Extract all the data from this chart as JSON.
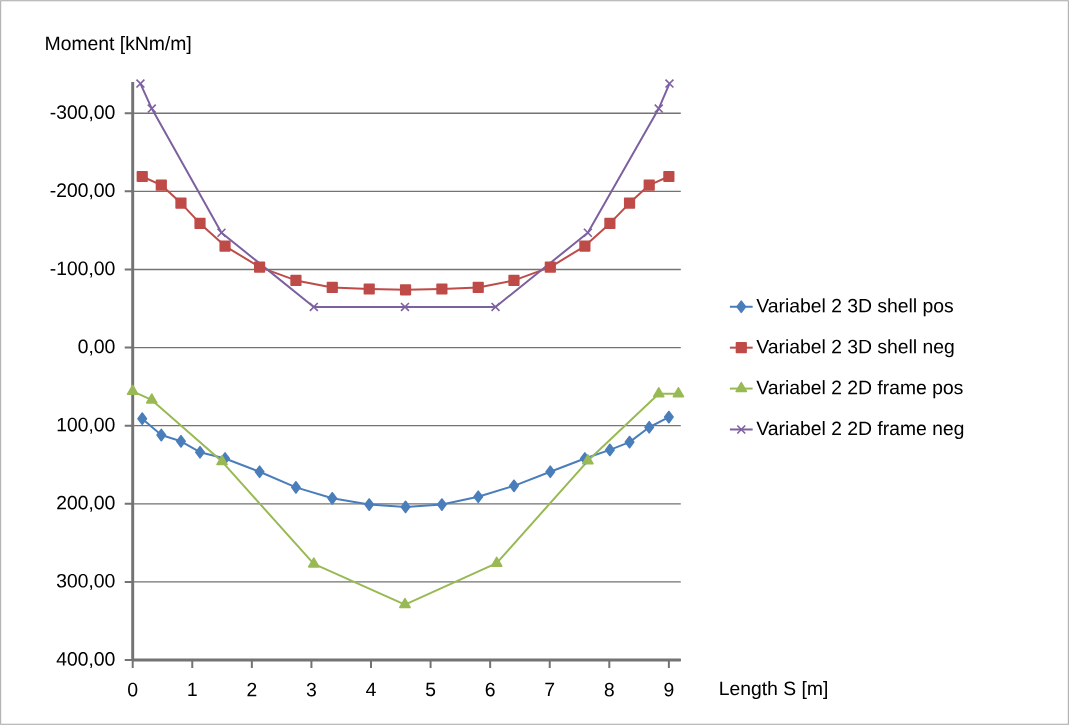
{
  "chart_data": {
    "type": "line",
    "xlabel": "Length S [m]",
    "ylabel": "Moment [kNm/m]",
    "xlim": [
      0,
      9.2
    ],
    "xticks": [
      0,
      1,
      2,
      3,
      4,
      5,
      6,
      7,
      8,
      9
    ],
    "ylim": [
      400,
      -340
    ],
    "yticks": [
      {
        "value": -300,
        "label": "-300,00"
      },
      {
        "value": -200,
        "label": "-200,00"
      },
      {
        "value": -100,
        "label": "-100,00"
      },
      {
        "value": 0,
        "label": "0,00"
      },
      {
        "value": 100,
        "label": "100,00"
      },
      {
        "value": 200,
        "label": "200,00"
      },
      {
        "value": 300,
        "label": "300,00"
      },
      {
        "value": 400,
        "label": "400,00"
      }
    ],
    "grid": "y",
    "legend": "right",
    "series": [
      {
        "name": "Variabel 2 3D shell pos",
        "color": "#4a7ebb",
        "marker": "diamond",
        "x": [
          0.16,
          0.48,
          0.81,
          1.13,
          1.55,
          2.13,
          2.74,
          3.35,
          3.97,
          4.58,
          5.19,
          5.8,
          6.4,
          7.01,
          7.59,
          8.01,
          8.34,
          8.67,
          9.0
        ],
        "values": [
          91,
          112,
          120,
          134,
          142,
          159,
          179,
          193,
          201,
          204,
          201,
          191,
          177,
          159,
          142,
          131,
          121,
          102,
          89
        ]
      },
      {
        "name": "Variabel 2 3D shell neg",
        "color": "#be4b48",
        "marker": "square",
        "x": [
          0.16,
          0.48,
          0.81,
          1.13,
          1.55,
          2.13,
          2.74,
          3.35,
          3.97,
          4.58,
          5.19,
          5.8,
          6.4,
          7.01,
          7.59,
          8.01,
          8.34,
          8.67,
          9.0
        ],
        "values": [
          -219,
          -208,
          -185,
          -159,
          -130,
          -103,
          -86,
          -77,
          -75,
          -74,
          -75,
          -77,
          -86,
          -103,
          -130,
          -159,
          -185,
          -208,
          -219
        ]
      },
      {
        "name": "Variabel 2 2D frame pos",
        "color": "#98b954",
        "marker": "triangle",
        "x": [
          0,
          0.32,
          1.5,
          3.04,
          4.57,
          6.11,
          7.64,
          8.83,
          9.16
        ],
        "values": [
          56,
          67,
          146,
          277,
          329,
          276,
          145,
          59,
          59
        ]
      },
      {
        "name": "Variabel 2 2D frame neg",
        "color": "#7d60a0",
        "marker": "cross",
        "x": [
          0.13,
          0.32,
          1.49,
          3.04,
          4.57,
          6.09,
          7.64,
          8.83,
          9.01
        ],
        "values": [
          -338,
          -306,
          -147,
          -52,
          -52,
          -52,
          -147,
          -306,
          -338
        ]
      }
    ]
  }
}
